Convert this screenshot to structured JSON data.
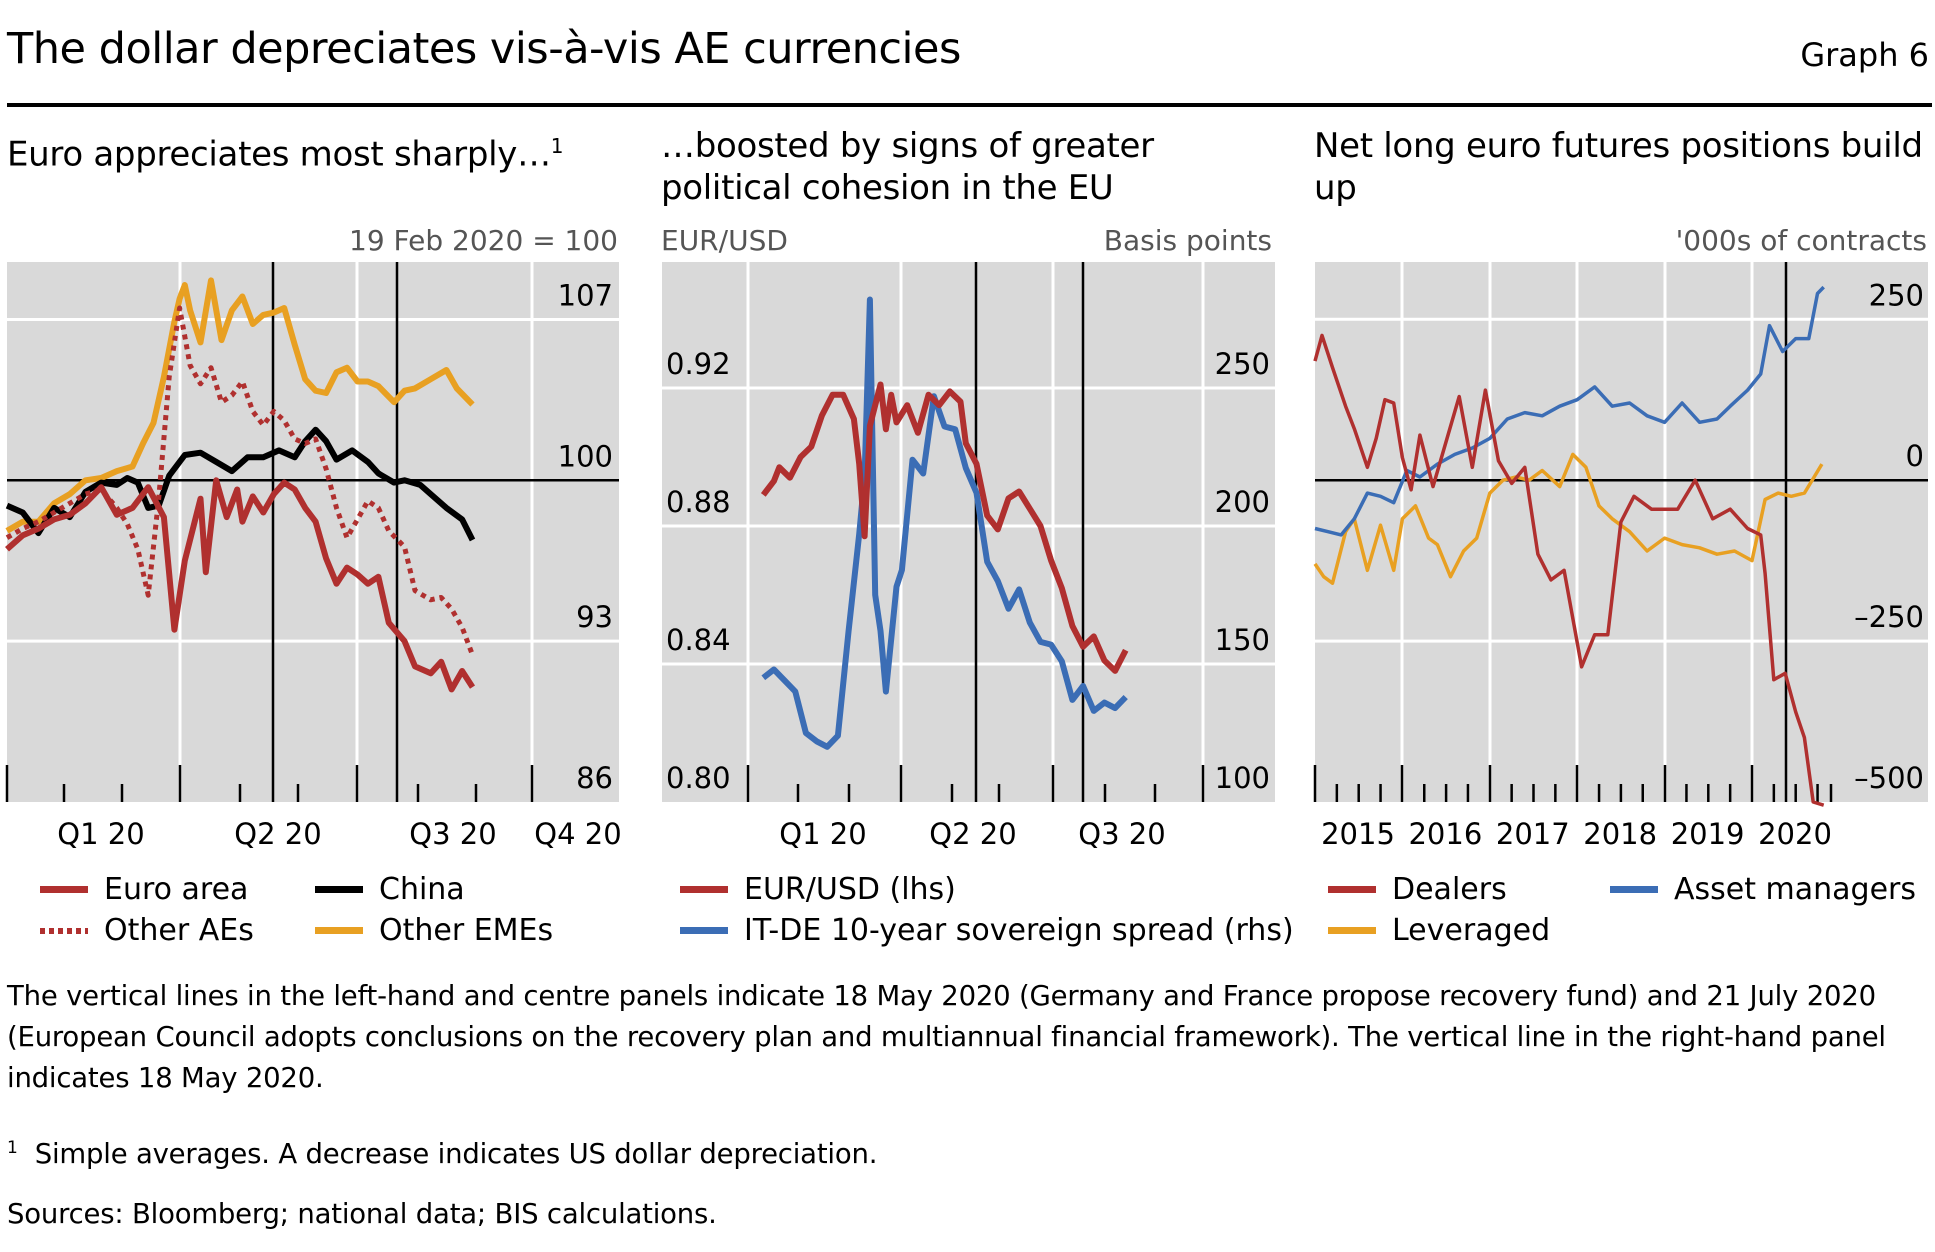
{
  "header": {
    "title": "The dollar depreciates vis-à-vis AE currencies",
    "graph_number": "Graph 6"
  },
  "colors": {
    "red": "#b0302f",
    "black": "#000000",
    "orange": "#e8a022",
    "blue": "#3b6db5",
    "plot_bg": "#d9d9d9",
    "grid": "#ffffff"
  },
  "chart_data": [
    {
      "type": "line",
      "title": "Euro appreciates most sharply…",
      "title_footnote": "1",
      "ylabel": "19 Feb 2020 = 100",
      "y_axis_side": "right",
      "yticks": [
        "107",
        "100",
        "93",
        "86"
      ],
      "ylim": [
        86,
        109.5
      ],
      "reference_line": 100,
      "xticks": [
        "Q1 20",
        "Q2 20",
        "Q3 20",
        "Q4 20"
      ],
      "xlim": [
        2019.79,
        2020.96
      ],
      "grid": true,
      "event_lines": [
        "18 May 2020",
        "21 Jul 2020"
      ],
      "event_x": [
        2020.376,
        2020.553
      ],
      "legend_position": "bottom",
      "series": [
        {
          "name": "Euro area",
          "color_key": "red",
          "style": "solid",
          "x": [
            2019.79,
            2019.82,
            2019.85,
            2019.88,
            2019.91,
            2019.94,
            2019.97,
            2020.0,
            2020.03,
            2020.06,
            2020.09,
            2020.11,
            2020.13,
            2020.16,
            2020.17,
            2020.19,
            2020.21,
            2020.23,
            2020.24,
            2020.26,
            2020.28,
            2020.3,
            2020.32,
            2020.34,
            2020.36,
            2020.38,
            2020.4,
            2020.42,
            2020.44,
            2020.46,
            2020.48,
            2020.5,
            2020.52,
            2020.55,
            2020.57,
            2020.6,
            2020.62,
            2020.64,
            2020.66,
            2020.68
          ],
          "y": [
            97.0,
            97.6,
            97.9,
            98.3,
            98.5,
            99.0,
            99.7,
            98.5,
            98.8,
            99.7,
            98.4,
            93.5,
            96.5,
            99.2,
            96.0,
            100.0,
            98.4,
            99.6,
            98.2,
            99.3,
            98.6,
            99.4,
            99.9,
            99.6,
            98.8,
            98.2,
            96.6,
            95.5,
            96.2,
            95.9,
            95.5,
            95.8,
            93.8,
            93.0,
            91.9,
            91.6,
            92.1,
            90.9,
            91.7,
            91.0
          ]
        },
        {
          "name": "Other AEs",
          "color_key": "red",
          "style": "dotted",
          "x": [
            2019.79,
            2019.82,
            2019.85,
            2019.88,
            2019.91,
            2019.94,
            2019.97,
            2020.0,
            2020.02,
            2020.04,
            2020.06,
            2020.08,
            2020.1,
            2020.12,
            2020.14,
            2020.16,
            2020.18,
            2020.2,
            2020.22,
            2020.24,
            2020.26,
            2020.28,
            2020.3,
            2020.32,
            2020.34,
            2020.36,
            2020.38,
            2020.4,
            2020.42,
            2020.44,
            2020.46,
            2020.48,
            2020.5,
            2020.52,
            2020.55,
            2020.57,
            2020.6,
            2020.62,
            2020.64,
            2020.66,
            2020.68
          ],
          "y": [
            97.5,
            97.9,
            98.2,
            98.6,
            99.0,
            99.4,
            99.6,
            98.8,
            98.1,
            97.0,
            95.0,
            99.2,
            104.5,
            107.5,
            105.0,
            104.2,
            104.9,
            103.4,
            103.7,
            104.3,
            103.0,
            102.4,
            103.0,
            102.6,
            101.8,
            101.6,
            101.8,
            100.5,
            98.8,
            97.5,
            98.3,
            99.1,
            98.8,
            97.8,
            97.1,
            95.2,
            94.8,
            94.9,
            94.4,
            93.6,
            92.4
          ]
        },
        {
          "name": "China",
          "color_key": "black",
          "style": "solid",
          "x": [
            2019.79,
            2019.82,
            2019.85,
            2019.88,
            2019.91,
            2019.94,
            2019.97,
            2020.0,
            2020.02,
            2020.04,
            2020.06,
            2020.08,
            2020.1,
            2020.13,
            2020.16,
            2020.19,
            2020.22,
            2020.25,
            2020.28,
            2020.31,
            2020.34,
            2020.36,
            2020.38,
            2020.4,
            2020.42,
            2020.45,
            2020.48,
            2020.5,
            2020.53,
            2020.55,
            2020.58,
            2020.6,
            2020.63,
            2020.66,
            2020.68
          ],
          "y": [
            98.9,
            98.6,
            97.7,
            98.8,
            98.4,
            99.5,
            99.9,
            99.8,
            100.1,
            99.9,
            98.8,
            98.9,
            100.2,
            101.1,
            101.2,
            100.8,
            100.4,
            101.0,
            101.0,
            101.3,
            101.0,
            101.7,
            102.2,
            101.7,
            100.9,
            101.3,
            100.8,
            100.3,
            99.9,
            100.0,
            99.8,
            99.4,
            98.8,
            98.3,
            97.4
          ]
        },
        {
          "name": "Other EMEs",
          "color_key": "orange",
          "style": "solid",
          "x": [
            2019.79,
            2019.82,
            2019.85,
            2019.88,
            2019.91,
            2019.94,
            2019.97,
            2020.0,
            2020.03,
            2020.05,
            2020.07,
            2020.09,
            2020.11,
            2020.12,
            2020.13,
            2020.14,
            2020.16,
            2020.18,
            2020.2,
            2020.22,
            2020.24,
            2020.26,
            2020.28,
            2020.3,
            2020.32,
            2020.34,
            2020.36,
            2020.38,
            2020.4,
            2020.42,
            2020.44,
            2020.46,
            2020.48,
            2020.5,
            2020.53,
            2020.55,
            2020.57,
            2020.6,
            2020.63,
            2020.65,
            2020.68
          ],
          "y": [
            97.8,
            98.2,
            98.2,
            99.0,
            99.4,
            100.0,
            100.1,
            100.4,
            100.6,
            101.6,
            102.5,
            104.5,
            106.9,
            107.9,
            108.5,
            107.4,
            106.0,
            108.7,
            106.1,
            107.4,
            108.0,
            106.8,
            107.2,
            107.3,
            107.5,
            105.9,
            104.4,
            103.9,
            103.8,
            104.7,
            104.9,
            104.3,
            104.3,
            104.1,
            103.4,
            103.9,
            104.0,
            104.4,
            104.8,
            104.0,
            103.3
          ]
        }
      ]
    },
    {
      "type": "line",
      "title": "…boosted by signs of greater political cohesion in the EU",
      "ylabel_left": "EUR/USD",
      "ylabel_right": "Basis points",
      "yticks_left": [
        "0.92",
        "0.88",
        "0.84",
        "0.80"
      ],
      "yticks_right": [
        "250",
        "200",
        "150",
        "100"
      ],
      "ylim_left": [
        0.8,
        0.9565
      ],
      "ylim_right": [
        100,
        295.6
      ],
      "xticks": [
        "Q1 20",
        "Q2 20",
        "Q3 20"
      ],
      "xlim": [
        2019.81,
        2020.96
      ],
      "grid": true,
      "event_lines": [
        "18 May 2020",
        "21 Jul 2020"
      ],
      "event_x": [
        2020.376,
        2020.553
      ],
      "legend_position": "bottom",
      "series": [
        {
          "name": "EUR/USD (lhs)",
          "axis": "left",
          "color_key": "red",
          "x": [
            2020.0,
            2020.02,
            2020.03,
            2020.05,
            2020.07,
            2020.09,
            2020.11,
            2020.13,
            2020.15,
            2020.17,
            2020.18,
            2020.19,
            2020.2,
            2020.22,
            2020.23,
            2020.24,
            2020.25,
            2020.27,
            2020.29,
            2020.31,
            2020.33,
            2020.35,
            2020.37,
            2020.38,
            2020.4,
            2020.42,
            2020.44,
            2020.46,
            2020.48,
            2020.5,
            2020.52,
            2020.54,
            2020.56,
            2020.58,
            2020.6,
            2020.62,
            2020.64,
            2020.66,
            2020.68
          ],
          "y": [
            0.889,
            0.893,
            0.897,
            0.894,
            0.9,
            0.903,
            0.912,
            0.918,
            0.918,
            0.911,
            0.898,
            0.877,
            0.909,
            0.921,
            0.908,
            0.918,
            0.91,
            0.915,
            0.907,
            0.918,
            0.915,
            0.919,
            0.916,
            0.904,
            0.898,
            0.883,
            0.879,
            0.888,
            0.89,
            0.885,
            0.88,
            0.87,
            0.862,
            0.851,
            0.845,
            0.848,
            0.841,
            0.838,
            0.844
          ]
        },
        {
          "name": "IT-DE 10-year sovereign spread (rhs)",
          "axis": "right",
          "color_key": "blue",
          "x": [
            2020.0,
            2020.02,
            2020.04,
            2020.06,
            2020.08,
            2020.1,
            2020.12,
            2020.14,
            2020.16,
            2020.18,
            2020.19,
            2020.2,
            2020.21,
            2020.22,
            2020.23,
            2020.25,
            2020.26,
            2020.28,
            2020.3,
            2020.32,
            2020.34,
            2020.36,
            2020.38,
            2020.4,
            2020.42,
            2020.44,
            2020.46,
            2020.48,
            2020.5,
            2020.52,
            2020.54,
            2020.56,
            2020.58,
            2020.6,
            2020.62,
            2020.64,
            2020.66,
            2020.68
          ],
          "y": [
            145,
            148,
            144,
            140,
            125,
            122,
            120,
            124,
            162,
            197,
            218,
            282,
            175,
            162,
            140,
            178,
            184,
            224,
            219,
            247,
            236,
            235,
            221,
            212,
            187,
            180,
            170,
            177,
            165,
            158,
            157,
            151,
            137,
            142,
            133,
            136,
            134,
            138
          ]
        }
      ]
    },
    {
      "type": "line",
      "title": "Net long euro futures positions build up",
      "ylabel": "'000s of contracts",
      "y_axis_side": "right",
      "yticks": [
        "250",
        "0",
        "–250",
        "–500"
      ],
      "ylim": [
        -500,
        339
      ],
      "reference_line": 0,
      "xticks": [
        "2015",
        "2016",
        "2017",
        "2018",
        "2019",
        "2020"
      ],
      "xlim": [
        2015.0,
        2021.7
      ],
      "grid": true,
      "event_lines": [
        "18 May 2020"
      ],
      "event_x": [
        2020.38
      ],
      "legend_position": "bottom",
      "series": [
        {
          "name": "Dealers",
          "color_key": "red",
          "x": [
            2015.0,
            2015.08,
            2015.2,
            2015.35,
            2015.45,
            2015.6,
            2015.7,
            2015.8,
            2015.9,
            2016.0,
            2016.1,
            2016.2,
            2016.35,
            2016.5,
            2016.65,
            2016.8,
            2016.95,
            2017.1,
            2017.25,
            2017.4,
            2017.55,
            2017.7,
            2017.85,
            2018.05,
            2018.2,
            2018.35,
            2018.5,
            2018.65,
            2018.85,
            2019.0,
            2019.15,
            2019.35,
            2019.55,
            2019.75,
            2019.95,
            2020.1,
            2020.15,
            2020.25,
            2020.38,
            2020.5,
            2020.6,
            2020.7,
            2020.82
          ],
          "y": [
            185,
            225,
            175,
            115,
            80,
            20,
            65,
            125,
            120,
            35,
            -15,
            70,
            -10,
            60,
            130,
            20,
            140,
            30,
            -5,
            20,
            -115,
            -155,
            -140,
            -290,
            -240,
            -240,
            -65,
            -25,
            -45,
            -45,
            -45,
            0,
            -60,
            -45,
            -75,
            -85,
            -145,
            -310,
            -300,
            -360,
            -400,
            -500,
            -505
          ]
        },
        {
          "name": "Leveraged",
          "color_key": "orange",
          "x": [
            2015.0,
            2015.1,
            2015.2,
            2015.35,
            2015.45,
            2015.6,
            2015.75,
            2015.9,
            2016.0,
            2016.15,
            2016.3,
            2016.4,
            2016.55,
            2016.7,
            2016.85,
            2017.0,
            2017.15,
            2017.3,
            2017.45,
            2017.6,
            2017.8,
            2017.95,
            2018.1,
            2018.25,
            2018.4,
            2018.6,
            2018.8,
            2019.0,
            2019.2,
            2019.4,
            2019.6,
            2019.8,
            2020.0,
            2020.15,
            2020.3,
            2020.45,
            2020.6,
            2020.8
          ],
          "y": [
            -130,
            -150,
            -160,
            -80,
            -60,
            -140,
            -70,
            -140,
            -60,
            -40,
            -90,
            -100,
            -150,
            -110,
            -90,
            -20,
            0,
            5,
            0,
            15,
            -10,
            40,
            20,
            -40,
            -60,
            -80,
            -110,
            -90,
            -100,
            -105,
            -115,
            -110,
            -125,
            -30,
            -20,
            -25,
            -20,
            25
          ]
        },
        {
          "name": "Asset managers",
          "color_key": "blue",
          "x": [
            2015.0,
            2015.15,
            2015.3,
            2015.45,
            2015.6,
            2015.75,
            2015.9,
            2016.05,
            2016.2,
            2016.4,
            2016.6,
            2016.8,
            2017.0,
            2017.2,
            2017.4,
            2017.6,
            2017.8,
            2018.0,
            2018.2,
            2018.4,
            2018.6,
            2018.8,
            2019.0,
            2019.2,
            2019.4,
            2019.6,
            2019.75,
            2019.95,
            2020.1,
            2020.2,
            2020.35,
            2020.5,
            2020.65,
            2020.75,
            2020.82
          ],
          "y": [
            -75,
            -80,
            -85,
            -60,
            -20,
            -25,
            -35,
            15,
            5,
            25,
            40,
            50,
            65,
            95,
            105,
            100,
            115,
            125,
            145,
            115,
            120,
            100,
            90,
            120,
            90,
            95,
            115,
            140,
            165,
            240,
            200,
            220,
            220,
            290,
            300
          ]
        }
      ]
    }
  ],
  "panels": [
    {
      "title": "Euro appreciates most sharply…",
      "title_footnote": "1",
      "unit_right": "19 Feb 2020 = 100"
    },
    {
      "title": "…boosted by signs of greater political cohesion in the EU",
      "unit_left": "EUR/USD",
      "unit_right": "Basis points"
    },
    {
      "title": "Net long euro futures positions build up",
      "unit_right": "'000s of contracts"
    }
  ],
  "legends": {
    "left": [
      {
        "label": "Euro area",
        "color_key": "red",
        "style": "solid"
      },
      {
        "label": "China",
        "color_key": "black",
        "style": "solid"
      },
      {
        "label": "Other AEs",
        "color_key": "red",
        "style": "dotted"
      },
      {
        "label": "Other EMEs",
        "color_key": "orange",
        "style": "solid"
      }
    ],
    "middle": [
      {
        "label": "EUR/USD (lhs)",
        "color_key": "red",
        "style": "solid"
      },
      {
        "label": "IT-DE 10-year sovereign spread (rhs)",
        "color_key": "blue",
        "style": "solid"
      }
    ],
    "right": [
      {
        "label": "Dealers",
        "color_key": "red",
        "style": "solid"
      },
      {
        "label": "Asset managers",
        "color_key": "blue",
        "style": "solid"
      },
      {
        "label": "Leveraged",
        "color_key": "orange",
        "style": "solid"
      }
    ]
  },
  "notes": {
    "main": "The vertical lines in the left-hand and centre panels indicate 18 May 2020 (Germany and France propose recovery fund) and 21 July 2020 (European Council adopts conclusions on the recovery plan and multiannual financial framework). The vertical line in the right-hand panel indicates 18 May 2020.",
    "footnote_marker": "1",
    "footnote": "Simple averages. A decrease indicates US dollar depreciation.",
    "sources": "Sources: Bloomberg; national data; BIS calculations."
  }
}
